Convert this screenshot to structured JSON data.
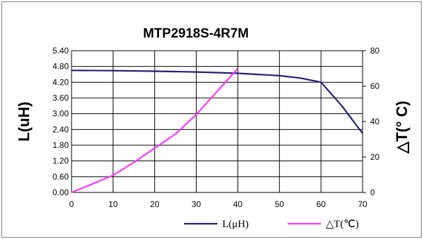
{
  "chart_data": {
    "type": "line",
    "title": "MTP2918S-4R7M",
    "ylabel_left": "L(uH)",
    "ylabel_right": "△T(° C)",
    "xlabel": "",
    "xlim": [
      0,
      70
    ],
    "ylim_left": [
      0,
      5.4
    ],
    "ylim_right": [
      0,
      80
    ],
    "x_ticks": [
      "0",
      "10",
      "20",
      "30",
      "40",
      "50",
      "60",
      "70"
    ],
    "y_left_ticks": [
      "0.00",
      "0.60",
      "1.20",
      "1.80",
      "2.40",
      "3.00",
      "3.60",
      "4.20",
      "4.80",
      "5.40"
    ],
    "y_right_ticks": [
      "0",
      "20",
      "40",
      "60",
      "80"
    ],
    "grid": true,
    "legend_position": "bottom-right",
    "series": [
      {
        "name": "L(μH)",
        "axis": "left",
        "color": "#1f1f7a",
        "x": [
          0,
          10,
          20,
          30,
          40,
          50,
          55,
          60,
          65,
          70
        ],
        "y": [
          4.65,
          4.64,
          4.62,
          4.59,
          4.54,
          4.45,
          4.36,
          4.2,
          3.3,
          2.25
        ]
      },
      {
        "name": "△T(℃)",
        "axis": "right",
        "color": "#ff33ff",
        "x": [
          0,
          5,
          10,
          15,
          20,
          25,
          30,
          35,
          40
        ],
        "y": [
          0,
          4.8,
          9.7,
          17,
          25,
          33,
          44,
          57,
          70
        ]
      }
    ]
  }
}
